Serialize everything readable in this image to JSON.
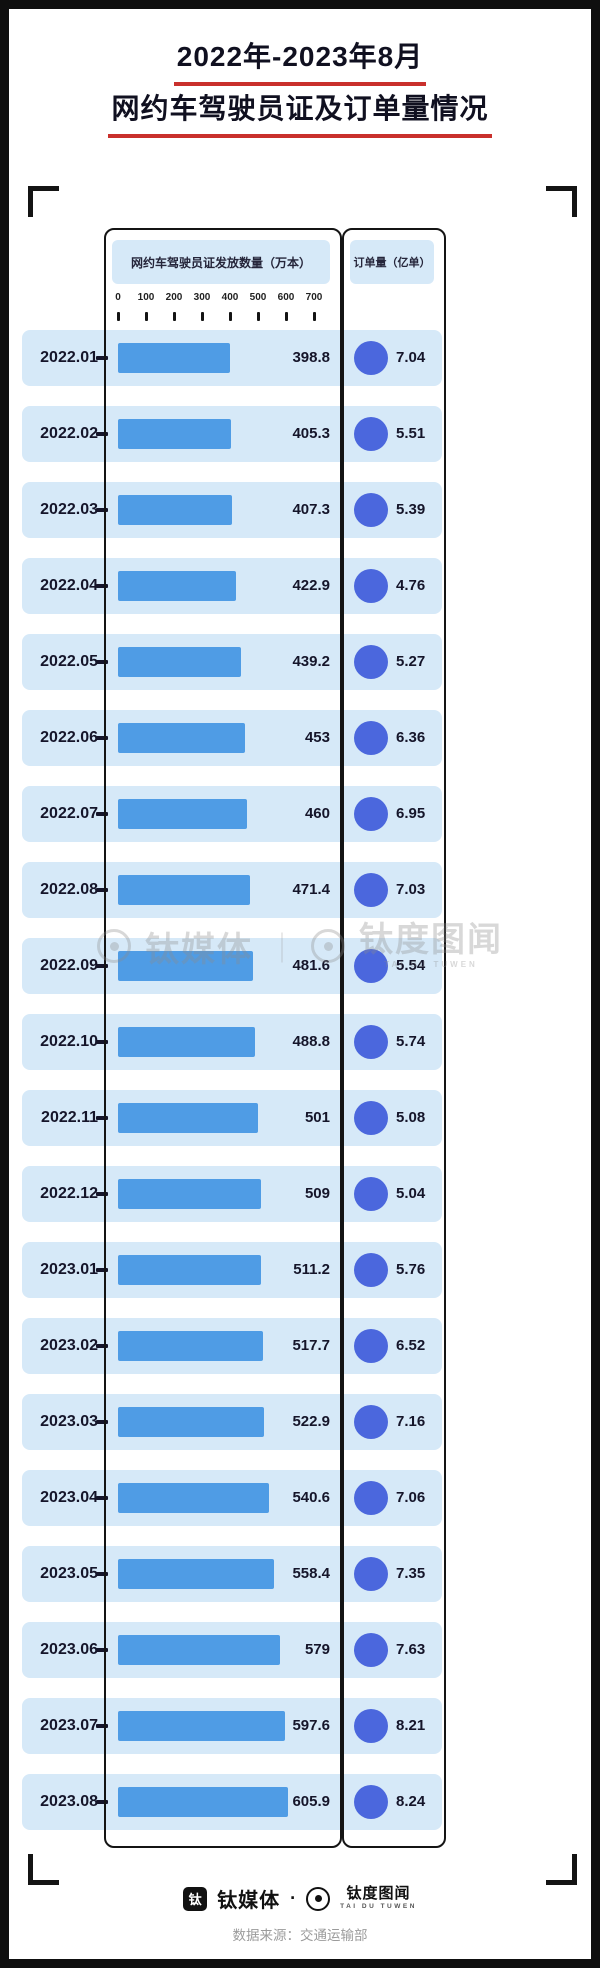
{
  "title": {
    "line1": "2022年-2023年8月",
    "line2": "网约车驾驶员证及订单量情况"
  },
  "panels": {
    "cert_header": "网约车驾驶员证发放数量（万本）",
    "orders_header": "订单量（亿单）"
  },
  "axis": {
    "ticks": [
      "0",
      "100",
      "200",
      "300",
      "400",
      "500",
      "600",
      "700"
    ],
    "max": 700
  },
  "rows": [
    {
      "month": "2022.01",
      "cert": 398.8,
      "cert_display": "398.8",
      "orders": 7.04,
      "orders_display": "7.04"
    },
    {
      "month": "2022.02",
      "cert": 405.3,
      "cert_display": "405.3",
      "orders": 5.51,
      "orders_display": "5.51"
    },
    {
      "month": "2022.03",
      "cert": 407.3,
      "cert_display": "407.3",
      "orders": 5.39,
      "orders_display": "5.39"
    },
    {
      "month": "2022.04",
      "cert": 422.9,
      "cert_display": "422.9",
      "orders": 4.76,
      "orders_display": "4.76"
    },
    {
      "month": "2022.05",
      "cert": 439.2,
      "cert_display": "439.2",
      "orders": 5.27,
      "orders_display": "5.27"
    },
    {
      "month": "2022.06",
      "cert": 453,
      "cert_display": "453",
      "orders": 6.36,
      "orders_display": "6.36"
    },
    {
      "month": "2022.07",
      "cert": 460,
      "cert_display": "460",
      "orders": 6.95,
      "orders_display": "6.95"
    },
    {
      "month": "2022.08",
      "cert": 471.4,
      "cert_display": "471.4",
      "orders": 7.03,
      "orders_display": "7.03"
    },
    {
      "month": "2022.09",
      "cert": 481.6,
      "cert_display": "481.6",
      "orders": 5.54,
      "orders_display": "5.54"
    },
    {
      "month": "2022.10",
      "cert": 488.8,
      "cert_display": "488.8",
      "orders": 5.74,
      "orders_display": "5.74"
    },
    {
      "month": "2022.11",
      "cert": 501,
      "cert_display": "501",
      "orders": 5.08,
      "orders_display": "5.08"
    },
    {
      "month": "2022.12",
      "cert": 509,
      "cert_display": "509",
      "orders": 5.04,
      "orders_display": "5.04"
    },
    {
      "month": "2023.01",
      "cert": 511.2,
      "cert_display": "511.2",
      "orders": 5.76,
      "orders_display": "5.76"
    },
    {
      "month": "2023.02",
      "cert": 517.7,
      "cert_display": "517.7",
      "orders": 6.52,
      "orders_display": "6.52"
    },
    {
      "month": "2023.03",
      "cert": 522.9,
      "cert_display": "522.9",
      "orders": 7.16,
      "orders_display": "7.16"
    },
    {
      "month": "2023.04",
      "cert": 540.6,
      "cert_display": "540.6",
      "orders": 7.06,
      "orders_display": "7.06"
    },
    {
      "month": "2023.05",
      "cert": 558.4,
      "cert_display": "558.4",
      "orders": 7.35,
      "orders_display": "7.35"
    },
    {
      "month": "2023.06",
      "cert": 579,
      "cert_display": "579",
      "orders": 7.63,
      "orders_display": "7.63"
    },
    {
      "month": "2023.07",
      "cert": 597.6,
      "cert_display": "597.6",
      "orders": 8.21,
      "orders_display": "8.21"
    },
    {
      "month": "2023.08",
      "cert": 605.9,
      "cert_display": "605.9",
      "orders": 8.24,
      "orders_display": "8.24"
    }
  ],
  "watermark": {
    "brand1": "钛媒体",
    "brand2": "钛度图闻",
    "brand2_sub": "TAI DU TUWEN",
    "separator": "｜"
  },
  "footer": {
    "logo_glyph": "钛",
    "brand1": "钛媒体",
    "separator": "·",
    "brand2": "钛度图闻",
    "brand2_sub": "TAI DU TUWEN",
    "source": "数据来源：交通运输部"
  },
  "colors": {
    "bar": "#4f9ce5",
    "dot": "#4b67dd",
    "band": "#d6e9f8",
    "accent_red": "#c9302c",
    "frame": "#0f0f0f"
  },
  "chart_data": {
    "type": "bar",
    "orientation": "horizontal",
    "title": "2022年-2023年8月网约车驾驶员证及订单量情况",
    "categories": [
      "2022.01",
      "2022.02",
      "2022.03",
      "2022.04",
      "2022.05",
      "2022.06",
      "2022.07",
      "2022.08",
      "2022.09",
      "2022.10",
      "2022.11",
      "2022.12",
      "2023.01",
      "2023.02",
      "2023.03",
      "2023.04",
      "2023.05",
      "2023.06",
      "2023.07",
      "2023.08"
    ],
    "series": [
      {
        "name": "网约车驾驶员证发放数量（万本）",
        "type": "bar",
        "values": [
          398.8,
          405.3,
          407.3,
          422.9,
          439.2,
          453,
          460,
          471.4,
          481.6,
          488.8,
          501,
          509,
          511.2,
          517.7,
          522.9,
          540.6,
          558.4,
          579,
          597.6,
          605.9
        ]
      },
      {
        "name": "订单量（亿单）",
        "type": "dot",
        "values": [
          7.04,
          5.51,
          5.39,
          4.76,
          5.27,
          6.36,
          6.95,
          7.03,
          5.54,
          5.74,
          5.08,
          5.04,
          5.76,
          6.52,
          7.16,
          7.06,
          7.35,
          7.63,
          8.21,
          8.24
        ]
      }
    ],
    "xlabel": "",
    "ylabel": "",
    "xlim": [
      0,
      700
    ],
    "x_ticks": [
      0,
      100,
      200,
      300,
      400,
      500,
      600,
      700
    ],
    "grid": false,
    "legend_position": "none",
    "source": "数据来源：交通运输部"
  }
}
